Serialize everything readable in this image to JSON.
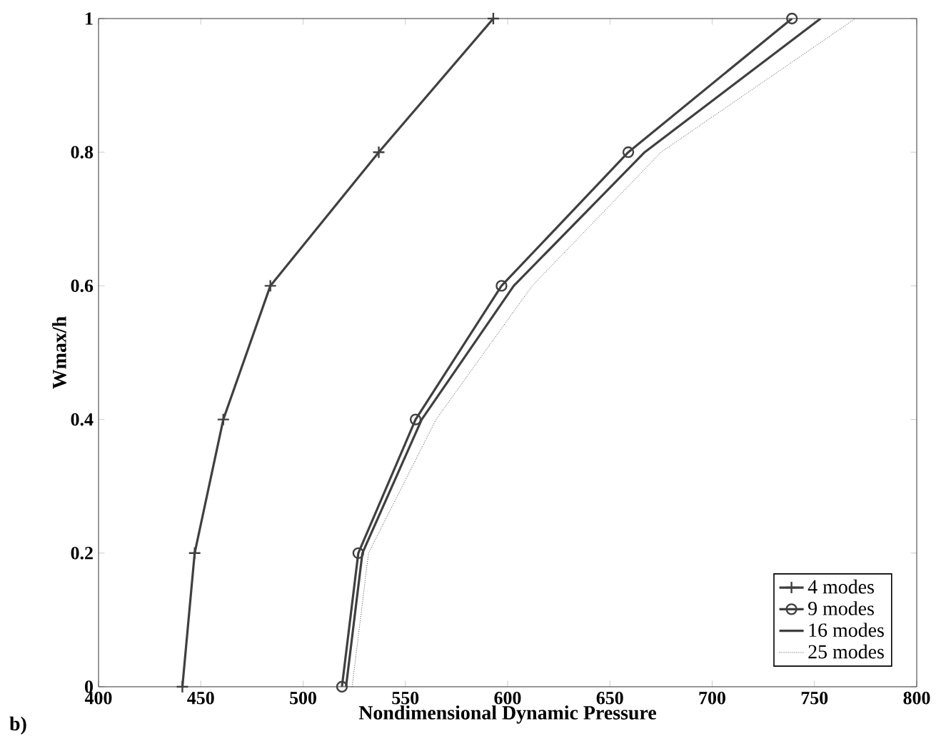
{
  "chart_data": {
    "type": "line",
    "xlabel": "Nondimensional Dynamic Pressure",
    "ylabel": "Wmax/h",
    "xlim": [
      400,
      800
    ],
    "xticks": [
      400,
      450,
      500,
      550,
      600,
      650,
      700,
      750,
      800
    ],
    "ylim": [
      0,
      1
    ],
    "yticks": [
      0,
      0.2,
      0.4,
      0.6,
      0.8,
      1
    ],
    "legend": "bottom right",
    "annotations": [
      "b)"
    ],
    "series": [
      {
        "name": "4 modes",
        "color": "#404040",
        "marker": "cross",
        "line_style": "solid",
        "x": [
          441,
          447,
          461,
          484,
          537,
          593
        ],
        "values": [
          0,
          0.2,
          0.4,
          0.6,
          0.8,
          1
        ]
      },
      {
        "name": "9 modes",
        "color": "#404040",
        "marker": "circle",
        "line_style": "solid",
        "x": [
          519,
          527,
          555,
          597,
          659,
          739
        ],
        "values": [
          0,
          0.2,
          0.4,
          0.6,
          0.8,
          1
        ]
      },
      {
        "name": "16 modes",
        "color": "#404040",
        "marker": "none",
        "line_style": "solid",
        "x": [
          521,
          529,
          558,
          603,
          667,
          753
        ],
        "values": [
          0,
          0.2,
          0.4,
          0.6,
          0.8,
          1
        ]
      },
      {
        "name": "25 modes",
        "color": "#404040",
        "marker": "none",
        "line_style": "dotted",
        "x": [
          524,
          532,
          565,
          612,
          675,
          770
        ],
        "values": [
          0,
          0.2,
          0.4,
          0.6,
          0.8,
          1
        ]
      }
    ]
  }
}
